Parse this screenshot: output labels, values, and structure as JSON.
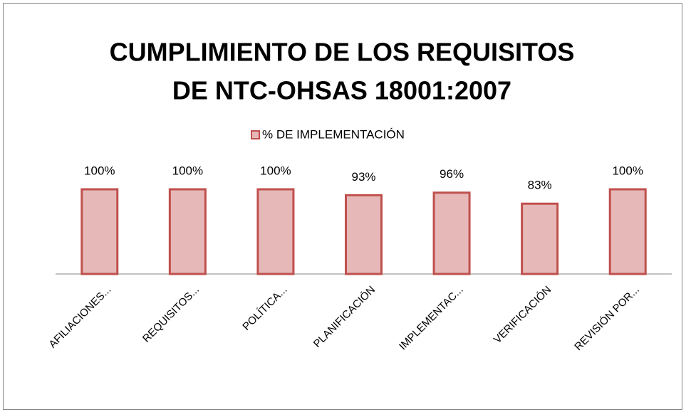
{
  "chart_data": {
    "type": "bar",
    "title": [
      "CUMPLIMIENTO DE LOS REQUISITOS",
      "DE NTC-OHSAS 18001:2007"
    ],
    "categories": [
      "AFILIACIONES...",
      "REQUISITOS...",
      "POLÍTICA...",
      "PLANIFICACIÓN",
      "IMPLEMENTAC...",
      "VERIFICACIÓN",
      "REVISIÓN POR..."
    ],
    "series": [
      {
        "name": "% DE IMPLEMENTACIÓN",
        "color": "#e6b9b8",
        "edge": "#c0504d",
        "values": [
          100,
          100,
          100,
          93,
          96,
          83,
          100
        ],
        "value_labels": [
          "100%",
          "100%",
          "100%",
          "93%",
          "96%",
          "83%",
          "100%"
        ]
      }
    ],
    "ylim": [
      0,
      100
    ],
    "legend": "top"
  }
}
